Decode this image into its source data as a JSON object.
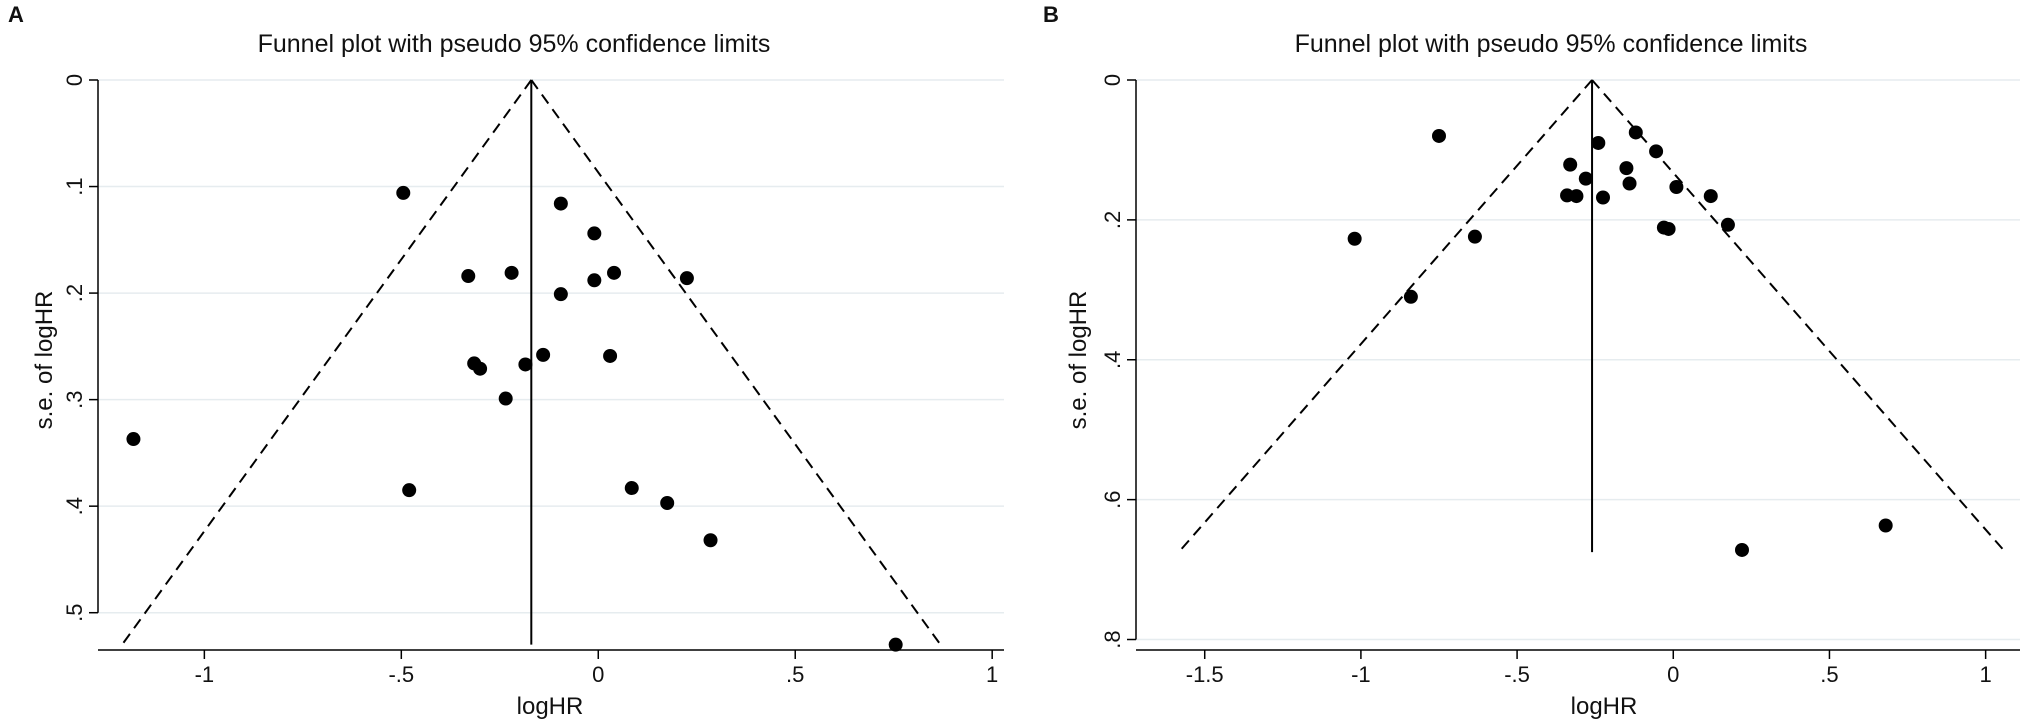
{
  "figure": {
    "panel_labels": [
      "A",
      "B"
    ]
  },
  "chart_data": [
    {
      "type": "scatter",
      "panel": "A",
      "title": "Funnel plot with pseudo 95% confidence limits",
      "xlabel": "logHR",
      "ylabel": "s.e. of logHR",
      "xlim": [
        -1.27,
        1.03
      ],
      "ylim": [
        0,
        0.535
      ],
      "y_reversed": true,
      "xticks": [
        -1,
        -0.5,
        0,
        0.5,
        1
      ],
      "xtick_labels": [
        "-1",
        "-.5",
        "0",
        ".5",
        "1"
      ],
      "yticks": [
        0,
        0.1,
        0.2,
        0.3,
        0.4,
        0.5
      ],
      "ytick_labels": [
        "0",
        ".1",
        ".2",
        ".3",
        ".4",
        ".5"
      ],
      "grid": true,
      "pooled_estimate": -0.17,
      "funnel_max_se": 0.53,
      "points": [
        {
          "x": -1.18,
          "y": 0.337
        },
        {
          "x": -0.495,
          "y": 0.106
        },
        {
          "x": -0.48,
          "y": 0.385
        },
        {
          "x": -0.33,
          "y": 0.184
        },
        {
          "x": -0.315,
          "y": 0.266
        },
        {
          "x": -0.3,
          "y": 0.271
        },
        {
          "x": -0.235,
          "y": 0.299
        },
        {
          "x": -0.22,
          "y": 0.181
        },
        {
          "x": -0.185,
          "y": 0.267
        },
        {
          "x": -0.14,
          "y": 0.258
        },
        {
          "x": -0.095,
          "y": 0.116
        },
        {
          "x": -0.095,
          "y": 0.201
        },
        {
          "x": -0.01,
          "y": 0.144
        },
        {
          "x": -0.01,
          "y": 0.188
        },
        {
          "x": 0.03,
          "y": 0.259
        },
        {
          "x": 0.04,
          "y": 0.181
        },
        {
          "x": 0.085,
          "y": 0.383
        },
        {
          "x": 0.175,
          "y": 0.397
        },
        {
          "x": 0.225,
          "y": 0.186
        },
        {
          "x": 0.285,
          "y": 0.432
        },
        {
          "x": 0.755,
          "y": 0.53
        }
      ]
    },
    {
      "type": "scatter",
      "panel": "B",
      "title": "Funnel plot with pseudo 95% confidence limits",
      "xlabel": "logHR",
      "ylabel": "s.e. of logHR",
      "xlim": [
        -1.72,
        1.11
      ],
      "ylim": [
        0,
        0.815
      ],
      "y_reversed": true,
      "xticks": [
        -1.5,
        -1,
        -0.5,
        0,
        0.5,
        1
      ],
      "xtick_labels": [
        "-1.5",
        "-1",
        "-.5",
        "0",
        ".5",
        "1"
      ],
      "yticks": [
        0,
        0.2,
        0.4,
        0.6,
        0.8
      ],
      "ytick_labels": [
        "0",
        ".2",
        ".4",
        ".6",
        ".8"
      ],
      "grid": true,
      "pooled_estimate": -0.26,
      "funnel_max_se": 0.675,
      "points": [
        {
          "x": -1.02,
          "y": 0.227
        },
        {
          "x": -0.84,
          "y": 0.31
        },
        {
          "x": -0.75,
          "y": 0.08
        },
        {
          "x": -0.635,
          "y": 0.224
        },
        {
          "x": -0.34,
          "y": 0.165
        },
        {
          "x": -0.33,
          "y": 0.121
        },
        {
          "x": -0.31,
          "y": 0.166
        },
        {
          "x": -0.28,
          "y": 0.141
        },
        {
          "x": -0.24,
          "y": 0.09
        },
        {
          "x": -0.225,
          "y": 0.168
        },
        {
          "x": -0.15,
          "y": 0.126
        },
        {
          "x": -0.14,
          "y": 0.148
        },
        {
          "x": -0.12,
          "y": 0.075
        },
        {
          "x": -0.055,
          "y": 0.102
        },
        {
          "x": -0.03,
          "y": 0.211
        },
        {
          "x": -0.015,
          "y": 0.213
        },
        {
          "x": 0.01,
          "y": 0.153
        },
        {
          "x": 0.12,
          "y": 0.166
        },
        {
          "x": 0.175,
          "y": 0.207
        },
        {
          "x": 0.22,
          "y": 0.672
        },
        {
          "x": 0.68,
          "y": 0.637
        }
      ]
    }
  ]
}
